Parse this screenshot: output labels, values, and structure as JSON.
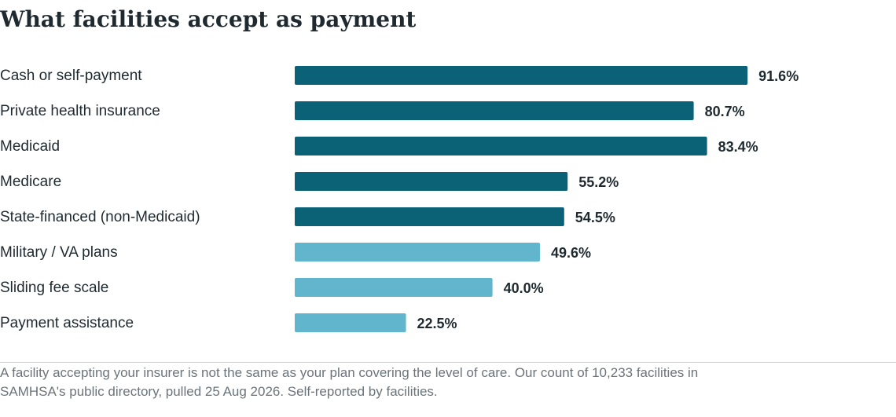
{
  "title": "What facilities accept as payment",
  "footnote": "A facility accepting your insurer is not the same as your plan covering the level of care. Our count of 10,233 facilities in SAMHSA's public directory, pulled 25 Aug 2026. Self-reported by facilities.",
  "colors": {
    "dark": "#0b6175",
    "light": "#61b5cc"
  },
  "chart_data": {
    "type": "bar",
    "orientation": "horizontal",
    "categories": [
      "Cash or self-payment",
      "Private health insurance",
      "Medicaid",
      "Medicare",
      "State-financed (non-Medicaid)",
      "Military / VA plans",
      "Sliding fee scale",
      "Payment assistance"
    ],
    "values": [
      91.6,
      80.7,
      83.4,
      55.2,
      54.5,
      49.6,
      40.0,
      22.5
    ],
    "value_labels": [
      "91.6%",
      "80.7%",
      "83.4%",
      "55.2%",
      "54.5%",
      "49.6%",
      "40.0%",
      "22.5%"
    ],
    "bar_colors": [
      "dark",
      "dark",
      "dark",
      "dark",
      "dark",
      "light",
      "light",
      "light"
    ],
    "xlim": [
      0,
      100
    ],
    "grid": false,
    "legend": "none"
  }
}
